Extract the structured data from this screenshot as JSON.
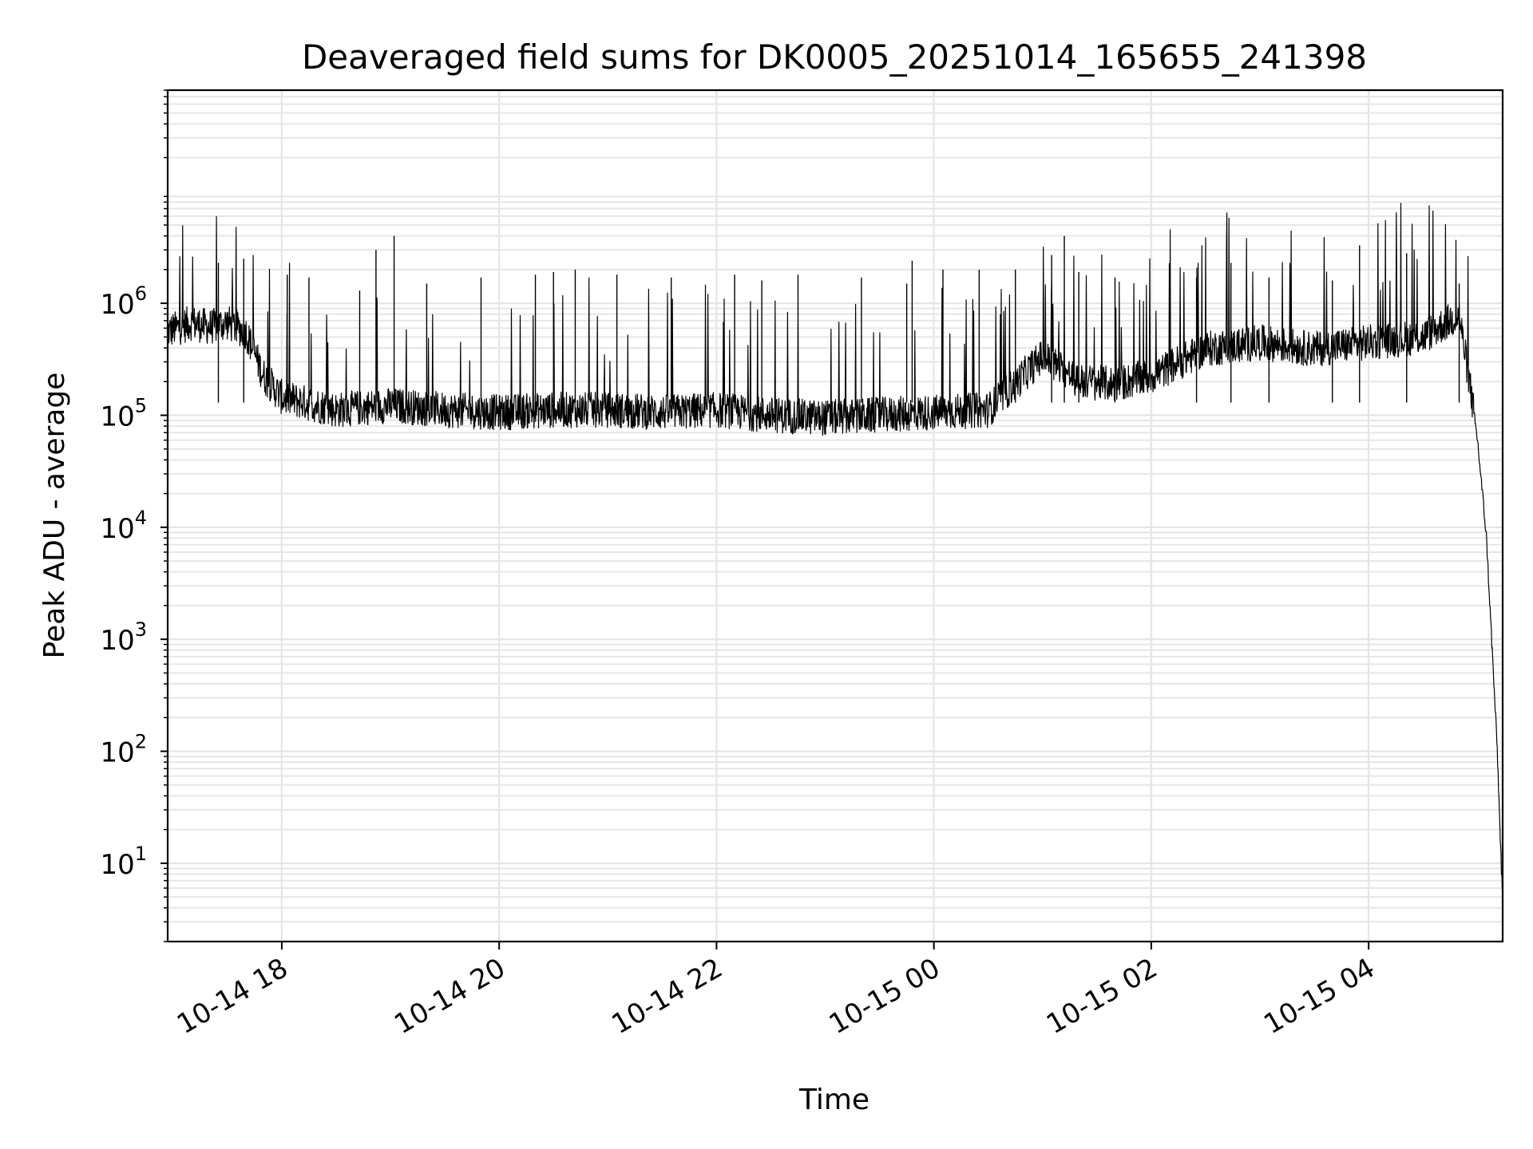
{
  "chart_data": {
    "type": "line",
    "title": "Deaveraged field sums for DK0005_20251014_165655_241398",
    "xlabel": "Time",
    "ylabel": "Peak ADU - average",
    "yscale": "log",
    "ylim": [
      2,
      80000000
    ],
    "xlim": [
      "2025-10-14 16:57",
      "2025-10-15 05:14"
    ],
    "grid": true,
    "grid_color": "#e6e6e6",
    "line_color": "#000000",
    "x_ticks": [
      {
        "value": "2025-10-14 18:00",
        "label": "10-14 18"
      },
      {
        "value": "2025-10-14 20:00",
        "label": "10-14 20"
      },
      {
        "value": "2025-10-14 22:00",
        "label": "10-14 22"
      },
      {
        "value": "2025-10-15 00:00",
        "label": "10-15 00"
      },
      {
        "value": "2025-10-15 02:00",
        "label": "10-15 02"
      },
      {
        "value": "2025-10-15 04:00",
        "label": "10-15 04"
      }
    ],
    "y_ticks": [
      {
        "value": 10,
        "base": "10",
        "exp": "1"
      },
      {
        "value": 100,
        "base": "10",
        "exp": "2"
      },
      {
        "value": 1000,
        "base": "10",
        "exp": "3"
      },
      {
        "value": 10000,
        "base": "10",
        "exp": "4"
      },
      {
        "value": 100000,
        "base": "10",
        "exp": "5"
      },
      {
        "value": 1000000,
        "base": "10",
        "exp": "6"
      }
    ],
    "series": [
      {
        "x": [
          "2025-10-14 16:57",
          "2025-10-14 17:10",
          "2025-10-14 17:20",
          "2025-10-14 17:30",
          "2025-10-14 17:40",
          "2025-10-14 17:50",
          "2025-10-14 18:00",
          "2025-10-14 18:30",
          "2025-10-14 19:00",
          "2025-10-14 19:30",
          "2025-10-14 20:00",
          "2025-10-14 20:30",
          "2025-10-14 21:00",
          "2025-10-14 21:30",
          "2025-10-14 22:00",
          "2025-10-14 22:30",
          "2025-10-14 23:00",
          "2025-10-14 23:30",
          "2025-10-15 00:00",
          "2025-10-15 00:30",
          "2025-10-15 01:00",
          "2025-10-15 01:20",
          "2025-10-15 01:40",
          "2025-10-15 02:00",
          "2025-10-15 02:30",
          "2025-10-15 03:00",
          "2025-10-15 03:30",
          "2025-10-15 04:00",
          "2025-10-15 04:30",
          "2025-10-15 04:50",
          "2025-10-15 05:00",
          "2025-10-15 05:05",
          "2025-10-15 05:08",
          "2025-10-15 05:11",
          "2025-10-15 05:14"
        ],
        "y": [
          500000,
          600000,
          550000,
          600000,
          500000,
          200000,
          130000,
          100000,
          110000,
          100000,
          95000,
          100000,
          100000,
          95000,
          100000,
          90000,
          85000,
          90000,
          95000,
          100000,
          300000,
          180000,
          170000,
          200000,
          350000,
          400000,
          350000,
          400000,
          450000,
          700000,
          60000,
          8000,
          900,
          100,
          4
        ]
      }
    ],
    "spikes": [
      {
        "x": "2025-10-14 17:25",
        "y": 2300000
      },
      {
        "x": "2025-10-14 17:39",
        "y": 2500000
      },
      {
        "x": "2025-10-14 18:03",
        "y": 1800000
      },
      {
        "x": "2025-10-14 18:15",
        "y": 1700000
      },
      {
        "x": "2025-10-14 18:43",
        "y": 1300000
      },
      {
        "x": "2025-10-14 18:52",
        "y": 3000000
      },
      {
        "x": "2025-10-14 19:02",
        "y": 4000000
      },
      {
        "x": "2025-10-14 19:20",
        "y": 1500000
      },
      {
        "x": "2025-10-14 19:50",
        "y": 1700000
      },
      {
        "x": "2025-10-14 20:20",
        "y": 1800000
      },
      {
        "x": "2025-10-14 20:30",
        "y": 1900000
      },
      {
        "x": "2025-10-14 20:42",
        "y": 2000000
      },
      {
        "x": "2025-10-14 21:05",
        "y": 1800000
      },
      {
        "x": "2025-10-14 21:35",
        "y": 1700000
      },
      {
        "x": "2025-10-14 22:10",
        "y": 1800000
      },
      {
        "x": "2025-10-14 22:25",
        "y": 1600000
      },
      {
        "x": "2025-10-14 22:45",
        "y": 1800000
      },
      {
        "x": "2025-10-14 23:20",
        "y": 1700000
      },
      {
        "x": "2025-10-14 23:45",
        "y": 1500000
      },
      {
        "x": "2025-10-14 23:48",
        "y": 2400000
      },
      {
        "x": "2025-10-15 00:05",
        "y": 2000000
      },
      {
        "x": "2025-10-15 00:25",
        "y": 2000000
      },
      {
        "x": "2025-10-15 00:45",
        "y": 2000000
      },
      {
        "x": "2025-10-15 01:05",
        "y": 2700000
      },
      {
        "x": "2025-10-15 01:12",
        "y": 4000000
      },
      {
        "x": "2025-10-15 01:20",
        "y": 1900000
      },
      {
        "x": "2025-10-15 01:40",
        "y": 1700000
      },
      {
        "x": "2025-10-15 02:25",
        "y": 1700000
      },
      {
        "x": "2025-10-15 02:44",
        "y": 2300000
      },
      {
        "x": "2025-10-15 03:05",
        "y": 1700000
      },
      {
        "x": "2025-10-15 03:40",
        "y": 1600000
      },
      {
        "x": "2025-10-15 03:55",
        "y": 3300000
      },
      {
        "x": "2025-10-15 04:21",
        "y": 2800000
      },
      {
        "x": "2025-10-15 04:50",
        "y": 1500000
      }
    ]
  }
}
